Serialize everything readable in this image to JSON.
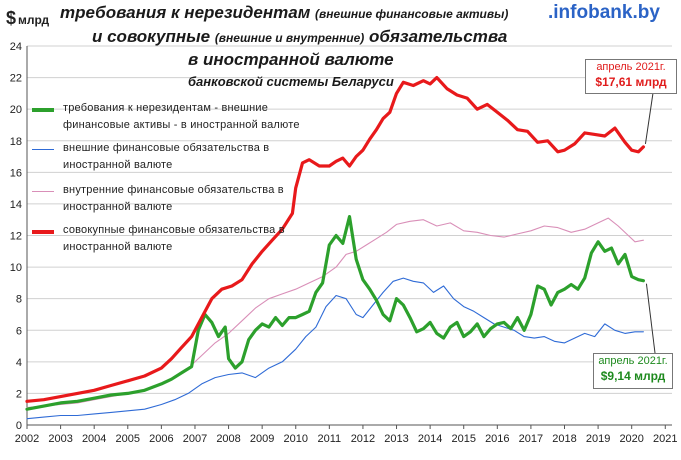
{
  "header": {
    "unit_symbol": "$",
    "unit_word": "млрд",
    "title_line1_main": "требования к нерезидентам ",
    "title_line1_small": "(внешние финансовые активы)",
    "title_line2_a": "и совокупные ",
    "title_line2_small": "(внешние и внутренние)",
    "title_line2_b": " обязательства",
    "title_line3": "в иностранной валюте",
    "title_line4": "банковской системы Беларуси",
    "logo_dot": ".",
    "logo_name": "infobank",
    "logo_tld": ".by"
  },
  "callouts": {
    "red_date": "апрель 2021г.",
    "red_value": "$17,61 млрд",
    "green_date": "апрель 2021г.",
    "green_value": "$9,14 млрд"
  },
  "colors": {
    "green": "#2ca02c",
    "blue": "#2f6bd6",
    "pink": "#d98fb8",
    "red": "#e8191b",
    "grid": "#d0d0d0",
    "axis": "#555555"
  },
  "chart_data": {
    "type": "line",
    "x_label": "",
    "y_label": "",
    "xlim": [
      2002,
      2021.2
    ],
    "ylim": [
      0,
      24
    ],
    "y_ticks": [
      0,
      2,
      4,
      6,
      8,
      10,
      12,
      14,
      16,
      18,
      20,
      22,
      24
    ],
    "x_ticks": [
      2002,
      2003,
      2004,
      2005,
      2006,
      2007,
      2008,
      2009,
      2010,
      2011,
      2012,
      2013,
      2014,
      2015,
      2016,
      2017,
      2018,
      2019,
      2020,
      2021
    ],
    "x_tick_labels": [
      "2002",
      "2003",
      "2004",
      "2005",
      "2006",
      "2007",
      "2008",
      "2009",
      "2010",
      "2011",
      "2012",
      "2013",
      "2014",
      "2015",
      "2016",
      "2017",
      "2018",
      "2019",
      "2020",
      "2021"
    ],
    "y_tick_labels": [
      "0",
      "2",
      "4",
      "6",
      "8",
      "10",
      "12",
      "14",
      "16",
      "18",
      "20",
      "22",
      "24"
    ],
    "grid": "horizontal",
    "legend_position": "top-left",
    "series": [
      {
        "name": "требования к нерезидентам - внешние финансовые активы - в иностранной валюте",
        "color_key": "green",
        "width": 3.2,
        "x": [
          2002.0,
          2002.5,
          2003.0,
          2003.5,
          2004.0,
          2004.5,
          2005.0,
          2005.5,
          2006.0,
          2006.3,
          2006.6,
          2006.9,
          2007.1,
          2007.3,
          2007.5,
          2007.7,
          2007.9,
          2008.0,
          2008.2,
          2008.4,
          2008.6,
          2008.8,
          2009.0,
          2009.2,
          2009.4,
          2009.6,
          2009.8,
          2010.0,
          2010.2,
          2010.4,
          2010.6,
          2010.8,
          2011.0,
          2011.2,
          2011.4,
          2011.6,
          2011.8,
          2012.0,
          2012.2,
          2012.4,
          2012.6,
          2012.8,
          2013.0,
          2013.2,
          2013.4,
          2013.6,
          2013.8,
          2014.0,
          2014.2,
          2014.4,
          2014.6,
          2014.8,
          2015.0,
          2015.2,
          2015.4,
          2015.6,
          2015.8,
          2016.0,
          2016.2,
          2016.4,
          2016.6,
          2016.8,
          2017.0,
          2017.2,
          2017.4,
          2017.6,
          2017.8,
          2018.0,
          2018.2,
          2018.4,
          2018.6,
          2018.8,
          2019.0,
          2019.2,
          2019.4,
          2019.6,
          2019.8,
          2020.0,
          2020.2,
          2020.35
        ],
        "y": [
          1.0,
          1.2,
          1.4,
          1.5,
          1.7,
          1.9,
          2.0,
          2.2,
          2.6,
          2.9,
          3.3,
          3.7,
          6.0,
          7.0,
          6.5,
          5.6,
          6.2,
          4.2,
          3.6,
          4.0,
          5.4,
          6.0,
          6.4,
          6.2,
          6.8,
          6.3,
          6.8,
          6.8,
          7.0,
          7.2,
          8.4,
          9.0,
          11.4,
          12.0,
          11.5,
          13.2,
          10.5,
          9.2,
          8.6,
          7.9,
          7.0,
          6.6,
          8.0,
          7.6,
          6.8,
          5.9,
          6.1,
          6.5,
          5.8,
          5.5,
          6.2,
          6.5,
          5.6,
          5.9,
          6.4,
          5.6,
          6.1,
          6.4,
          6.5,
          6.1,
          6.8,
          6.0,
          7.0,
          8.8,
          8.6,
          7.6,
          8.4,
          8.6,
          8.9,
          8.6,
          9.3,
          10.9,
          11.6,
          11.0,
          11.2,
          10.2,
          10.8,
          9.4,
          9.2,
          9.14
        ]
      },
      {
        "name": "внешние финансовые обязательства в иностранной валюте",
        "color_key": "blue",
        "width": 1.1,
        "x": [
          2002.0,
          2002.5,
          2003.0,
          2003.5,
          2004.0,
          2004.5,
          2005.0,
          2005.5,
          2006.0,
          2006.4,
          2006.8,
          2007.2,
          2007.6,
          2008.0,
          2008.4,
          2008.8,
          2009.2,
          2009.6,
          2010.0,
          2010.3,
          2010.6,
          2010.9,
          2011.2,
          2011.5,
          2011.8,
          2012.0,
          2012.3,
          2012.6,
          2012.9,
          2013.2,
          2013.5,
          2013.8,
          2014.1,
          2014.4,
          2014.7,
          2015.0,
          2015.3,
          2015.6,
          2015.9,
          2016.2,
          2016.5,
          2016.8,
          2017.1,
          2017.4,
          2017.7,
          2018.0,
          2018.3,
          2018.6,
          2018.9,
          2019.2,
          2019.5,
          2019.8,
          2020.1,
          2020.35
        ],
        "y": [
          0.4,
          0.5,
          0.6,
          0.6,
          0.7,
          0.8,
          0.9,
          1.0,
          1.3,
          1.6,
          2.0,
          2.6,
          3.0,
          3.2,
          3.3,
          3.0,
          3.6,
          4.0,
          4.8,
          5.6,
          6.2,
          7.5,
          8.2,
          8.0,
          7.0,
          6.8,
          7.6,
          8.4,
          9.1,
          9.3,
          9.1,
          9.0,
          8.4,
          8.8,
          8.0,
          7.5,
          7.2,
          6.8,
          6.4,
          6.2,
          6.0,
          5.6,
          5.5,
          5.6,
          5.3,
          5.2,
          5.5,
          5.8,
          5.6,
          6.4,
          6.0,
          5.8,
          5.9,
          5.9
        ]
      },
      {
        "name": "внутренние финансовые обязательства в иностранной валюте",
        "color_key": "pink",
        "width": 1.1,
        "x": [
          2002.0,
          2002.5,
          2003.0,
          2003.5,
          2004.0,
          2004.5,
          2005.0,
          2005.5,
          2006.0,
          2006.4,
          2006.8,
          2007.2,
          2007.6,
          2008.0,
          2008.4,
          2008.8,
          2009.2,
          2009.6,
          2010.0,
          2010.4,
          2010.8,
          2011.2,
          2011.5,
          2011.8,
          2012.1,
          2012.4,
          2012.7,
          2013.0,
          2013.4,
          2013.8,
          2014.2,
          2014.6,
          2015.0,
          2015.4,
          2015.8,
          2016.2,
          2016.6,
          2017.0,
          2017.4,
          2017.8,
          2018.2,
          2018.6,
          2019.0,
          2019.3,
          2019.6,
          2019.9,
          2020.1,
          2020.35
        ],
        "y": [
          1.1,
          1.2,
          1.3,
          1.4,
          1.6,
          1.8,
          2.0,
          2.2,
          2.6,
          3.0,
          3.6,
          4.4,
          5.2,
          5.8,
          6.6,
          7.4,
          8.0,
          8.3,
          8.6,
          9.0,
          9.4,
          10.0,
          10.8,
          11.0,
          11.4,
          11.8,
          12.2,
          12.7,
          12.9,
          13.0,
          12.6,
          12.8,
          12.3,
          12.2,
          12.0,
          11.9,
          12.1,
          12.3,
          12.6,
          12.5,
          12.2,
          12.4,
          12.8,
          13.1,
          12.6,
          12.0,
          11.6,
          11.7
        ]
      },
      {
        "name": "совокупные финансовые обязательства в иностранной валюте",
        "color_key": "red",
        "width": 3.2,
        "x": [
          2002.0,
          2002.5,
          2003.0,
          2003.5,
          2004.0,
          2004.5,
          2005.0,
          2005.5,
          2006.0,
          2006.3,
          2006.6,
          2006.9,
          2007.2,
          2007.5,
          2007.8,
          2008.1,
          2008.4,
          2008.7,
          2009.0,
          2009.3,
          2009.6,
          2009.9,
          2010.0,
          2010.2,
          2010.4,
          2010.7,
          2011.0,
          2011.2,
          2011.4,
          2011.6,
          2011.8,
          2012.0,
          2012.2,
          2012.4,
          2012.6,
          2012.8,
          2013.0,
          2013.2,
          2013.5,
          2013.8,
          2014.0,
          2014.2,
          2014.5,
          2014.8,
          2015.1,
          2015.4,
          2015.7,
          2016.0,
          2016.3,
          2016.6,
          2016.9,
          2017.2,
          2017.5,
          2017.8,
          2018.0,
          2018.3,
          2018.6,
          2018.9,
          2019.2,
          2019.5,
          2019.8,
          2020.0,
          2020.2,
          2020.35
        ],
        "y": [
          1.5,
          1.6,
          1.8,
          2.0,
          2.2,
          2.5,
          2.8,
          3.1,
          3.6,
          4.2,
          4.9,
          5.6,
          6.8,
          8.0,
          8.6,
          8.8,
          9.2,
          10.2,
          11.0,
          11.7,
          12.4,
          13.4,
          15.0,
          16.6,
          16.8,
          16.4,
          16.4,
          16.7,
          16.9,
          16.4,
          17.0,
          17.4,
          18.1,
          18.7,
          19.4,
          19.8,
          21.0,
          21.7,
          21.5,
          21.8,
          21.6,
          22.0,
          21.3,
          20.9,
          20.7,
          20.0,
          20.3,
          19.8,
          19.3,
          18.7,
          18.6,
          17.9,
          18.0,
          17.3,
          17.4,
          17.8,
          18.5,
          18.4,
          18.3,
          18.8,
          17.9,
          17.4,
          17.3,
          17.61
        ]
      }
    ]
  }
}
